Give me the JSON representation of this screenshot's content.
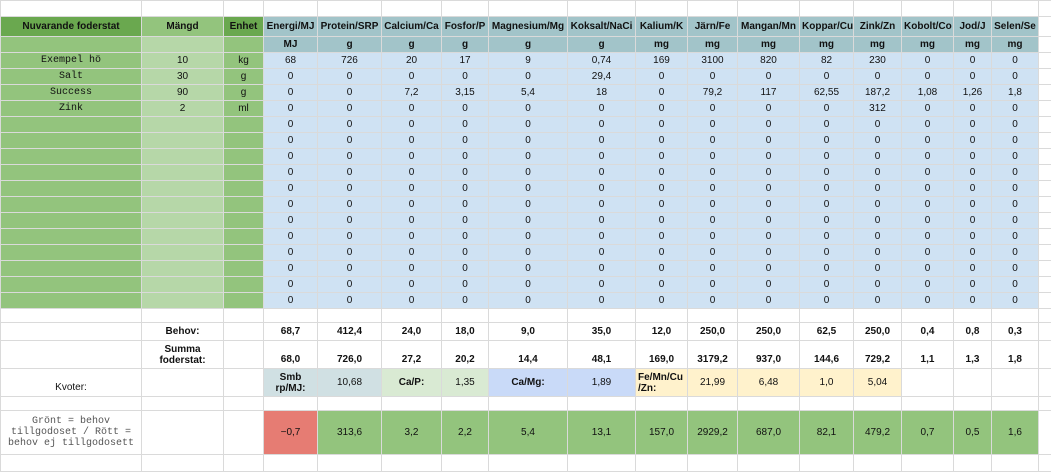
{
  "header": {
    "label": "Nuvarande foderstat",
    "amount": "Mängd",
    "unit": "Enhet",
    "nutrients": [
      "Energi/MJ",
      "Protein/SRP",
      "Calcium/Ca",
      "Fosfor/P",
      "Magnesium/Mg",
      "Koksalt/NaCi",
      "Kalium/K",
      "Järn/Fe",
      "Mangan/Mn",
      "Koppar/Cu",
      "Zink/Zn",
      "Kobolt/Co",
      "Jod/J",
      "Selen/Se"
    ],
    "units": [
      "MJ",
      "g",
      "g",
      "g",
      "g",
      "g",
      "mg",
      "mg",
      "mg",
      "mg",
      "mg",
      "mg",
      "mg",
      "mg"
    ]
  },
  "rows": [
    {
      "name": "Exempel hö",
      "amount": "10",
      "unit": "kg",
      "values": [
        "68",
        "726",
        "20",
        "17",
        "9",
        "0,74",
        "169",
        "3100",
        "820",
        "82",
        "230",
        "0",
        "0",
        "0"
      ]
    },
    {
      "name": "Salt",
      "amount": "30",
      "unit": "g",
      "values": [
        "0",
        "0",
        "0",
        "0",
        "0",
        "29,4",
        "0",
        "0",
        "0",
        "0",
        "0",
        "0",
        "0",
        "0"
      ]
    },
    {
      "name": "Success",
      "amount": "90",
      "unit": "g",
      "values": [
        "0",
        "0",
        "7,2",
        "3,15",
        "5,4",
        "18",
        "0",
        "79,2",
        "117",
        "62,55",
        "187,2",
        "1,08",
        "1,26",
        "1,8"
      ]
    },
    {
      "name": "Zink",
      "amount": "2",
      "unit": "ml",
      "values": [
        "0",
        "0",
        "0",
        "0",
        "0",
        "0",
        "0",
        "0",
        "0",
        "0",
        "312",
        "0",
        "0",
        "0"
      ]
    },
    {
      "values": [
        "0",
        "0",
        "0",
        "0",
        "0",
        "0",
        "0",
        "0",
        "0",
        "0",
        "0",
        "0",
        "0",
        "0"
      ]
    },
    {
      "values": [
        "0",
        "0",
        "0",
        "0",
        "0",
        "0",
        "0",
        "0",
        "0",
        "0",
        "0",
        "0",
        "0",
        "0"
      ]
    },
    {
      "values": [
        "0",
        "0",
        "0",
        "0",
        "0",
        "0",
        "0",
        "0",
        "0",
        "0",
        "0",
        "0",
        "0",
        "0"
      ]
    },
    {
      "values": [
        "0",
        "0",
        "0",
        "0",
        "0",
        "0",
        "0",
        "0",
        "0",
        "0",
        "0",
        "0",
        "0",
        "0"
      ]
    },
    {
      "values": [
        "0",
        "0",
        "0",
        "0",
        "0",
        "0",
        "0",
        "0",
        "0",
        "0",
        "0",
        "0",
        "0",
        "0"
      ]
    },
    {
      "values": [
        "0",
        "0",
        "0",
        "0",
        "0",
        "0",
        "0",
        "0",
        "0",
        "0",
        "0",
        "0",
        "0",
        "0"
      ]
    },
    {
      "values": [
        "0",
        "0",
        "0",
        "0",
        "0",
        "0",
        "0",
        "0",
        "0",
        "0",
        "0",
        "0",
        "0",
        "0"
      ]
    },
    {
      "values": [
        "0",
        "0",
        "0",
        "0",
        "0",
        "0",
        "0",
        "0",
        "0",
        "0",
        "0",
        "0",
        "0",
        "0"
      ]
    },
    {
      "values": [
        "0",
        "0",
        "0",
        "0",
        "0",
        "0",
        "0",
        "0",
        "0",
        "0",
        "0",
        "0",
        "0",
        "0"
      ]
    },
    {
      "values": [
        "0",
        "0",
        "0",
        "0",
        "0",
        "0",
        "0",
        "0",
        "0",
        "0",
        "0",
        "0",
        "0",
        "0"
      ]
    },
    {
      "values": [
        "0",
        "0",
        "0",
        "0",
        "0",
        "0",
        "0",
        "0",
        "0",
        "0",
        "0",
        "0",
        "0",
        "0"
      ]
    },
    {
      "values": [
        "0",
        "0",
        "0",
        "0",
        "0",
        "0",
        "0",
        "0",
        "0",
        "0",
        "0",
        "0",
        "0",
        "0"
      ]
    }
  ],
  "behov": {
    "label": "Behov:",
    "values": [
      "68,7",
      "412,4",
      "24,0",
      "18,0",
      "9,0",
      "35,0",
      "12,0",
      "250,0",
      "250,0",
      "62,5",
      "250,0",
      "0,4",
      "0,8",
      "0,3"
    ]
  },
  "summa": {
    "label": "Summa foderstat:",
    "values": [
      "68,0",
      "726,0",
      "27,2",
      "20,2",
      "14,4",
      "48,1",
      "169,0",
      "3179,2",
      "937,0",
      "144,6",
      "729,2",
      "1,1",
      "1,3",
      "1,8"
    ]
  },
  "kvoter": {
    "label": "Kvoter:",
    "cells": [
      "Smb rp/MJ:",
      "10,68",
      "Ca/P:",
      "1,35",
      "Ca/Mg:",
      "1,89",
      "Fe/Mn/Cu /Zn:",
      "21,99",
      "6,48",
      "1,0",
      "5,04"
    ]
  },
  "balance": {
    "label": "Grönt = behov tillgodoset / Rött = behov ej tillgodosett",
    "values": [
      "−0,7",
      "313,6",
      "3,2",
      "2,2",
      "5,4",
      "13,1",
      "157,0",
      "2929,2",
      "687,0",
      "82,1",
      "479,2",
      "0,7",
      "0,5",
      "1,6"
    ]
  }
}
